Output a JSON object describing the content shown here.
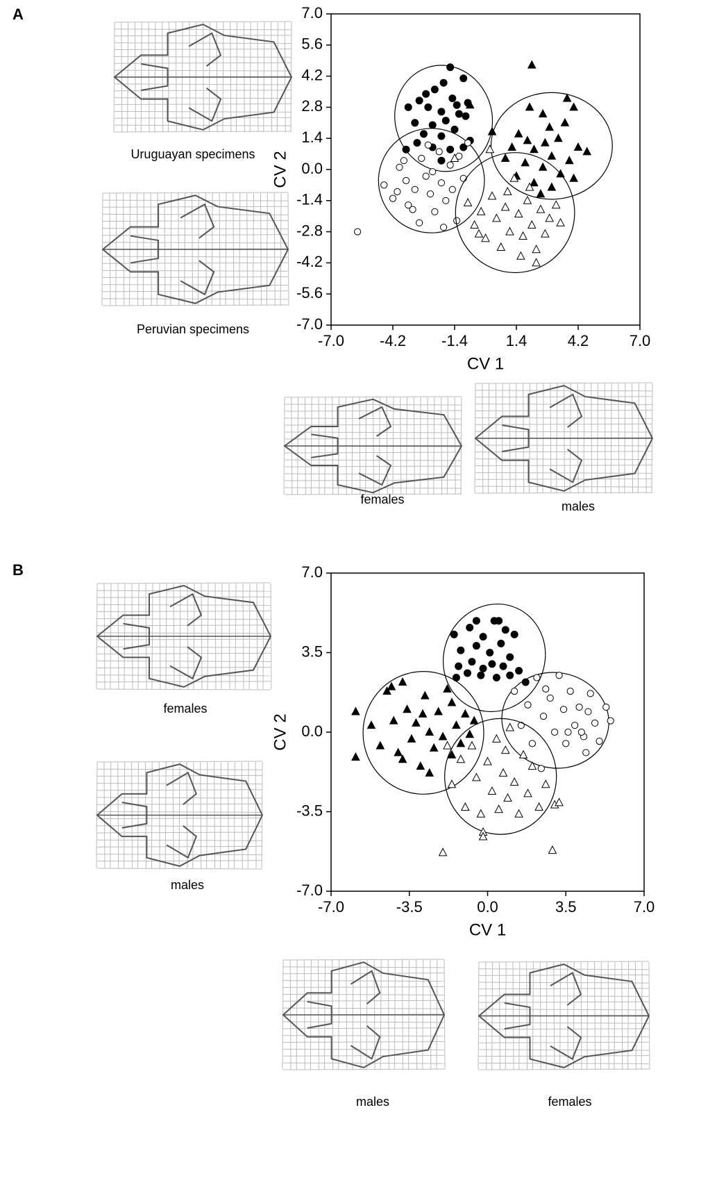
{
  "panels": [
    {
      "label": "A",
      "captions": [
        "Uruguayan specimens",
        "Peruvian specimens",
        "females",
        "males"
      ]
    },
    {
      "label": "B",
      "captions": [
        "females",
        "males",
        "males",
        "females"
      ]
    }
  ],
  "chart_data": [
    {
      "type": "scatter",
      "x_label": "CV 1",
      "y_label": "CV 2",
      "xlim": [
        -7,
        7
      ],
      "ylim": [
        -7,
        7
      ],
      "xticks": [
        {
          "value": -7,
          "label": "-7.0"
        },
        -4.2,
        -1.4,
        1.4,
        4.2,
        {
          "value": 7,
          "label": "7.0"
        }
      ],
      "yticks": [
        {
          "value": 7,
          "label": "7.0"
        },
        5.6,
        4.2,
        2.8,
        1.4,
        {
          "value": 0,
          "label": "0.0"
        },
        -1.4,
        -2.8,
        -4.2,
        -5.6,
        {
          "value": -7,
          "label": "-7.0"
        }
      ],
      "series": [
        {
          "marker": "circle",
          "filled": true,
          "color": "#000000",
          "x": [
            -1.6,
            -1.0,
            -2.3,
            -3.0,
            -1.5,
            -0.8,
            -2.6,
            -2.0,
            -1.2,
            -3.5,
            -1.8,
            -0.9,
            -2.4,
            -3.2,
            -1.4,
            -2.8,
            -2.0,
            -0.7,
            -3.1,
            -2.4,
            -1.6,
            -3.6,
            -2.0,
            -1.0,
            -2.7,
            -1.9,
            -1.3
          ],
          "values": [
            4.6,
            4.1,
            3.6,
            3.1,
            3.2,
            3.0,
            2.8,
            2.6,
            2.5,
            2.8,
            2.2,
            2.4,
            2.0,
            2.1,
            1.8,
            1.6,
            1.5,
            1.3,
            1.2,
            1.0,
            0.9,
            0.9,
            0.4,
            1.0,
            3.4,
            3.9,
            2.9
          ],
          "ellipse": {
            "cx": -1.9,
            "cy": 2.3,
            "rx": 2.2,
            "ry": 2.4,
            "angle": 15
          }
        },
        {
          "marker": "circle",
          "filled": false,
          "color": "#000000",
          "x": [
            -5.8,
            -4.6,
            -4.2,
            -3.9,
            -3.6,
            -3.5,
            -3.2,
            -3.0,
            -2.9,
            -2.7,
            -2.5,
            -2.3,
            -2.1,
            -2.0,
            -1.8,
            -1.6,
            -1.5,
            -1.3,
            -1.2,
            -1.0,
            -2.6,
            -3.3,
            -4.0,
            -1.9,
            -2.4,
            -0.8,
            -3.7
          ],
          "values": [
            -2.8,
            -0.7,
            -1.3,
            0.1,
            -0.5,
            -1.6,
            -0.9,
            -2.4,
            0.5,
            -0.3,
            -1.1,
            -1.9,
            0.8,
            -0.6,
            -1.4,
            0.2,
            -0.9,
            -2.3,
            0.6,
            -0.4,
            1.1,
            -1.8,
            -1.0,
            -2.6,
            -0.1,
            1.2,
            0.4
          ],
          "ellipse": {
            "cx": -2.45,
            "cy": -0.5,
            "rx": 2.4,
            "ry": 2.35,
            "angle": 0
          }
        },
        {
          "marker": "triangle",
          "filled": true,
          "color": "#000000",
          "x": [
            2.1,
            3.7,
            4.0,
            -0.7,
            2.0,
            2.6,
            0.3,
            1.5,
            2.9,
            3.3,
            4.2,
            4.6,
            1.2,
            2.2,
            3.0,
            3.8,
            1.8,
            2.6,
            3.4,
            1.4,
            2.2,
            3.0,
            4.0,
            2.5,
            1.9,
            3.6,
            2.7,
            0.9
          ],
          "values": [
            4.7,
            3.2,
            2.8,
            2.9,
            2.8,
            2.5,
            1.7,
            1.6,
            1.9,
            1.4,
            1.0,
            0.8,
            1.0,
            0.9,
            0.6,
            0.4,
            0.3,
            0.1,
            -0.2,
            -0.3,
            -0.6,
            -0.8,
            -0.4,
            -1.1,
            1.3,
            2.1,
            1.2,
            0.5
          ],
          "ellipse": {
            "cx": 3.0,
            "cy": 1.06,
            "rx": 2.75,
            "ry": 2.4,
            "angle": 0
          }
        },
        {
          "marker": "triangle",
          "filled": false,
          "color": "#000000",
          "x": [
            -1.4,
            -0.8,
            -0.5,
            -0.2,
            0.0,
            0.3,
            0.5,
            0.7,
            0.9,
            1.1,
            1.3,
            1.5,
            1.7,
            1.9,
            2.1,
            2.3,
            2.5,
            2.7,
            2.9,
            3.2,
            3.4,
            2.3,
            1.0,
            0.2,
            1.6,
            -0.3,
            2.0
          ],
          "values": [
            0.5,
            -1.5,
            -2.5,
            -1.9,
            -3.1,
            -1.2,
            -2.2,
            -3.5,
            -1.7,
            -2.8,
            -0.4,
            -2.0,
            -3.0,
            -1.4,
            -2.5,
            -3.6,
            -1.8,
            -2.9,
            -2.2,
            -1.6,
            -2.4,
            -4.2,
            -1.0,
            0.9,
            -3.9,
            -2.9,
            -0.8
          ],
          "ellipse": {
            "cx": 1.34,
            "cy": -1.94,
            "rx": 2.7,
            "ry": 2.7,
            "angle": 0
          }
        }
      ]
    },
    {
      "type": "scatter",
      "x_label": "CV 1",
      "y_label": "CV 2",
      "xlim": [
        -7,
        7
      ],
      "ylim": [
        -7,
        7
      ],
      "xticks": [
        {
          "value": -7,
          "label": "-7.0"
        },
        -3.5,
        {
          "value": 0,
          "label": "0.0"
        },
        3.5,
        {
          "value": 7,
          "label": "7.0"
        }
      ],
      "yticks": [
        {
          "value": 7,
          "label": "7.0"
        },
        3.5,
        {
          "value": 0,
          "label": "0.0"
        },
        -3.5,
        {
          "value": -7,
          "label": "-7.0"
        }
      ],
      "series": [
        {
          "marker": "circle",
          "filled": true,
          "color": "#000000",
          "x": [
            -1.5,
            -0.8,
            -0.2,
            0.3,
            0.8,
            1.2,
            -1.2,
            -0.5,
            0.1,
            0.6,
            1.0,
            -1.3,
            -0.7,
            0.2,
            0.7,
            1.4,
            -1.4,
            -0.9,
            -0.3,
            0.4,
            1.0,
            1.7,
            -0.5,
            0.5,
            -0.2
          ],
          "values": [
            4.3,
            4.6,
            4.2,
            4.9,
            4.5,
            4.3,
            3.6,
            3.8,
            3.5,
            3.9,
            3.3,
            2.9,
            3.1,
            3.0,
            2.9,
            2.7,
            2.4,
            2.6,
            2.5,
            2.4,
            2.5,
            2.2,
            4.9,
            4.9,
            2.8
          ],
          "ellipse": {
            "cx": 0.3,
            "cy": 3.27,
            "rx": 2.25,
            "ry": 2.4,
            "angle": -25
          }
        },
        {
          "marker": "circle",
          "filled": false,
          "color": "#000000",
          "x": [
            1.2,
            1.8,
            2.2,
            2.5,
            2.8,
            3.0,
            3.2,
            3.4,
            3.5,
            3.7,
            3.9,
            4.1,
            4.3,
            4.5,
            4.6,
            4.8,
            5.0,
            5.3,
            5.5,
            2.0,
            2.4,
            2.6,
            3.6,
            4.2,
            1.5,
            4.4
          ],
          "values": [
            1.8,
            1.2,
            2.4,
            0.7,
            1.5,
            0.0,
            2.5,
            1.0,
            -0.5,
            1.8,
            0.3,
            1.1,
            -0.2,
            0.9,
            1.7,
            0.4,
            -0.4,
            1.1,
            0.5,
            -0.5,
            -1.6,
            1.9,
            0.0,
            0.0,
            0.3,
            -0.9
          ],
          "ellipse": {
            "cx": 3.03,
            "cy": 0.52,
            "rx": 2.4,
            "ry": 2.1,
            "angle": -10
          }
        },
        {
          "marker": "triangle",
          "filled": true,
          "color": "#000000",
          "x": [
            -5.9,
            -5.9,
            -5.2,
            -4.8,
            -4.5,
            -4.2,
            -4.0,
            -3.8,
            -3.6,
            -3.4,
            -3.2,
            -3.0,
            -2.8,
            -2.6,
            -2.4,
            -2.2,
            -2.0,
            -1.8,
            -1.6,
            -1.4,
            -1.2,
            -1.0,
            -0.8,
            -2.6,
            -3.8,
            -1.6,
            -4.3,
            -0.6,
            -2.9
          ],
          "values": [
            0.9,
            -1.1,
            0.3,
            -0.6,
            1.8,
            0.5,
            -0.9,
            2.2,
            1.0,
            -0.3,
            0.4,
            -1.5,
            1.6,
            0.0,
            -0.7,
            0.9,
            -0.2,
            1.9,
            -1.0,
            0.3,
            -0.5,
            0.8,
            -0.1,
            -1.8,
            -1.2,
            1.3,
            2.0,
            0.5,
            0.8
          ],
          "ellipse": {
            "cx": -2.87,
            "cy": -0.03,
            "rx": 2.7,
            "ry": 2.7,
            "angle": 0
          }
        },
        {
          "marker": "triangle",
          "filled": false,
          "color": "#000000",
          "x": [
            -2.0,
            -1.8,
            -1.6,
            -1.2,
            -1.0,
            -0.7,
            -0.5,
            -0.3,
            -0.2,
            0.0,
            0.2,
            0.4,
            0.5,
            0.7,
            0.9,
            1.0,
            1.2,
            1.4,
            1.6,
            1.8,
            2.0,
            2.3,
            2.6,
            3.0,
            3.2,
            2.9,
            -0.2,
            0.8
          ],
          "values": [
            -5.3,
            -0.6,
            -2.3,
            -1.2,
            -3.3,
            -0.6,
            -2.0,
            -3.6,
            -4.4,
            -1.3,
            -2.6,
            -0.3,
            -3.4,
            -1.8,
            -2.9,
            0.2,
            -2.2,
            -3.6,
            -1.0,
            -2.7,
            -1.5,
            -3.3,
            -2.3,
            -3.2,
            -3.1,
            -5.2,
            -4.6,
            -0.8
          ],
          "ellipse": {
            "cx": 0.58,
            "cy": -1.95,
            "rx": 2.5,
            "ry": 2.55,
            "angle": 0
          }
        }
      ]
    }
  ]
}
